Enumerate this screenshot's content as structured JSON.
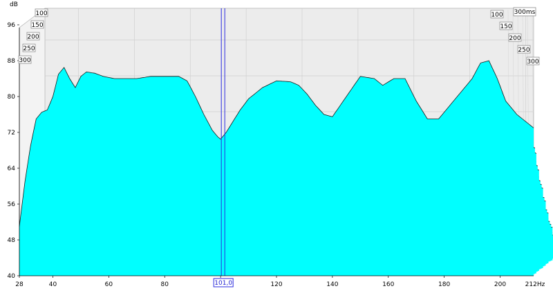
{
  "chart_data": {
    "type": "waterfall",
    "ylabel": "dB",
    "x_unit": "Hz",
    "xlim": [
      28,
      212
    ],
    "ylim": [
      40,
      100
    ],
    "x_ticks": [
      28,
      40,
      60,
      80,
      100,
      120,
      140,
      160,
      180,
      200
    ],
    "x_tick_labels": [
      "28",
      "40",
      "60",
      "80",
      "",
      "120",
      "140",
      "160",
      "180",
      "200"
    ],
    "x_end_label": "212Hz",
    "y_ticks": [
      40,
      48,
      56,
      64,
      72,
      80,
      88,
      96
    ],
    "time_labels_left": [
      "100",
      "150",
      "200",
      "250",
      "300"
    ],
    "time_labels_right": [
      "100",
      "150",
      "200",
      "250",
      "300"
    ],
    "time_label_max": "300ms",
    "cursor": {
      "frequency": 101.0,
      "label": "101,0"
    },
    "slices_count": 36,
    "first_slice": {
      "frequency_hz": [
        28,
        30,
        32,
        34,
        36,
        38,
        40,
        42,
        44,
        46,
        48,
        50,
        52,
        55,
        58,
        62,
        66,
        70,
        75,
        80,
        85,
        88,
        91,
        94,
        97,
        99,
        100,
        102,
        104,
        107,
        110,
        115,
        120,
        125,
        128,
        131,
        134,
        137,
        140,
        145,
        150,
        155,
        158,
        162,
        166,
        170,
        174,
        178,
        182,
        186,
        190,
        193,
        196,
        199,
        202,
        206,
        210,
        212
      ],
      "db": [
        51,
        61,
        69,
        75,
        76.5,
        77,
        80,
        85,
        86.5,
        84,
        82,
        84.5,
        85.5,
        85.2,
        84.5,
        84,
        84,
        84,
        84.5,
        84.5,
        84.5,
        83.5,
        80,
        76,
        72.5,
        71,
        70.5,
        72,
        74,
        77,
        79.5,
        82,
        83.5,
        83.3,
        82.5,
        80.5,
        78,
        76,
        75.5,
        80,
        84.5,
        84,
        82.5,
        84,
        84,
        79,
        75,
        75,
        78,
        81,
        84,
        87.5,
        88,
        84,
        79,
        76,
        74,
        73
      ]
    },
    "last_slice": {
      "frequency_hz": [
        36,
        40,
        44,
        48,
        52,
        56,
        60,
        64,
        68,
        72,
        76,
        80,
        84,
        88,
        92,
        96,
        100,
        104,
        108,
        112,
        116,
        120,
        124,
        128,
        132,
        136,
        140,
        144,
        148,
        152,
        156,
        160,
        164,
        168,
        172,
        176,
        180,
        184,
        188,
        192,
        196,
        200,
        204,
        208,
        212
      ],
      "db": [
        40.5,
        41,
        41.5,
        41,
        42,
        41.5,
        41,
        42,
        41.5,
        41,
        43,
        41.5,
        42,
        41,
        42,
        41.5,
        41,
        43,
        42,
        41.5,
        42,
        41,
        42.5,
        41.5,
        41,
        42,
        43,
        41.5,
        41,
        42,
        41.5,
        42,
        41,
        42,
        41.5,
        41,
        42,
        41.5,
        41,
        42,
        41.5,
        41,
        41.5,
        41,
        41
      ]
    }
  }
}
